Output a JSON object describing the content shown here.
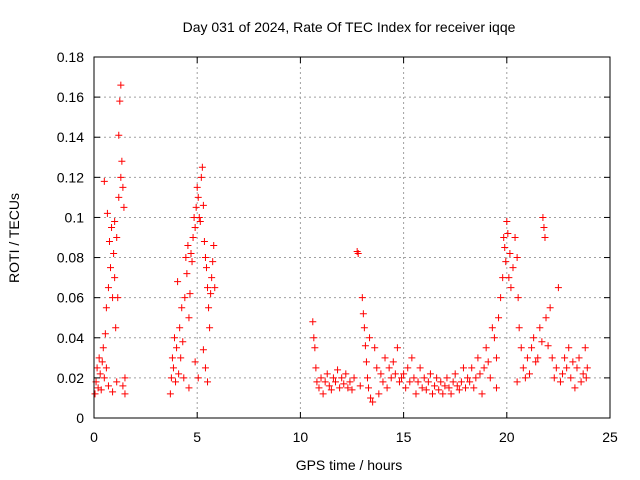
{
  "chart_data": {
    "type": "scatter",
    "title": "Day 031 of 2024, Rate Of TEC Index for receiver iqqe",
    "xlabel": "GPS time / hours",
    "ylabel": "ROTI / TECUs",
    "xlim": [
      0,
      25
    ],
    "ylim": [
      0,
      0.18
    ],
    "xticks": [
      0,
      5,
      10,
      15,
      20,
      25
    ],
    "xtick_labels": [
      "0",
      "5",
      "10",
      "15",
      "20",
      "25"
    ],
    "yticks": [
      0,
      0.02,
      0.04,
      0.06,
      0.08,
      0.1,
      0.12,
      0.14,
      0.16,
      0.18
    ],
    "ytick_labels": [
      "0",
      "0.02",
      "0.04",
      "0.06",
      "0.08",
      "0.1",
      "0.12",
      "0.14",
      "0.16",
      "0.18"
    ],
    "grid": true,
    "marker": "+",
    "marker_color": "#ff0000",
    "series": [
      {
        "name": "ROTI",
        "points": [
          [
            0.05,
            0.012
          ],
          [
            0.1,
            0.018
          ],
          [
            0.15,
            0.025
          ],
          [
            0.2,
            0.015
          ],
          [
            0.25,
            0.03
          ],
          [
            0.3,
            0.022
          ],
          [
            0.35,
            0.014
          ],
          [
            0.4,
            0.028
          ],
          [
            0.45,
            0.035
          ],
          [
            0.5,
            0.02
          ],
          [
            0.5,
            0.118
          ],
          [
            0.55,
            0.042
          ],
          [
            0.6,
            0.055
          ],
          [
            0.65,
            0.102
          ],
          [
            0.7,
            0.065
          ],
          [
            0.75,
            0.088
          ],
          [
            0.8,
            0.075
          ],
          [
            0.85,
            0.095
          ],
          [
            0.9,
            0.06
          ],
          [
            0.95,
            0.082
          ],
          [
            1.0,
            0.07
          ],
          [
            1.0,
            0.098
          ],
          [
            1.05,
            0.045
          ],
          [
            1.1,
            0.09
          ],
          [
            1.15,
            0.06
          ],
          [
            1.2,
            0.11
          ],
          [
            1.2,
            0.141
          ],
          [
            1.25,
            0.158
          ],
          [
            1.3,
            0.166
          ],
          [
            1.3,
            0.12
          ],
          [
            1.35,
            0.128
          ],
          [
            1.4,
            0.115
          ],
          [
            1.45,
            0.105
          ],
          [
            1.5,
            0.012
          ],
          [
            1.5,
            0.02
          ],
          [
            1.1,
            0.018
          ],
          [
            0.9,
            0.013
          ],
          [
            0.7,
            0.016
          ],
          [
            0.6,
            0.025
          ],
          [
            1.4,
            0.016
          ],
          [
            3.7,
            0.012
          ],
          [
            3.75,
            0.02
          ],
          [
            3.8,
            0.03
          ],
          [
            3.85,
            0.025
          ],
          [
            3.9,
            0.04
          ],
          [
            3.95,
            0.018
          ],
          [
            4.0,
            0.035
          ],
          [
            4.05,
            0.068
          ],
          [
            4.1,
            0.022
          ],
          [
            4.15,
            0.045
          ],
          [
            4.2,
            0.03
          ],
          [
            4.25,
            0.055
          ],
          [
            4.3,
            0.038
          ],
          [
            4.35,
            0.02
          ],
          [
            4.4,
            0.06
          ],
          [
            4.45,
            0.08
          ],
          [
            4.5,
            0.072
          ],
          [
            4.55,
            0.086
          ],
          [
            4.6,
            0.05
          ],
          [
            4.65,
            0.062
          ],
          [
            4.7,
            0.082
          ],
          [
            4.75,
            0.078
          ],
          [
            4.8,
            0.09
          ],
          [
            4.85,
            0.1
          ],
          [
            4.9,
            0.095
          ],
          [
            4.95,
            0.105
          ],
          [
            5.0,
            0.115
          ],
          [
            5.05,
            0.11
          ],
          [
            5.1,
            0.1
          ],
          [
            5.15,
            0.098
          ],
          [
            5.2,
            0.12
          ],
          [
            5.25,
            0.125
          ],
          [
            5.3,
            0.106
          ],
          [
            5.35,
            0.088
          ],
          [
            5.4,
            0.08
          ],
          [
            5.45,
            0.075
          ],
          [
            5.5,
            0.065
          ],
          [
            5.55,
            0.055
          ],
          [
            5.6,
            0.045
          ],
          [
            5.65,
            0.062
          ],
          [
            5.7,
            0.07
          ],
          [
            5.75,
            0.078
          ],
          [
            5.8,
            0.086
          ],
          [
            5.85,
            0.065
          ],
          [
            5.4,
            0.025
          ],
          [
            5.5,
            0.018
          ],
          [
            4.9,
            0.028
          ],
          [
            5.05,
            0.02
          ],
          [
            4.6,
            0.015
          ],
          [
            5.3,
            0.034
          ],
          [
            10.6,
            0.048
          ],
          [
            10.65,
            0.04
          ],
          [
            10.7,
            0.035
          ],
          [
            10.75,
            0.025
          ],
          [
            10.8,
            0.018
          ],
          [
            10.9,
            0.015
          ],
          [
            11.0,
            0.02
          ],
          [
            11.1,
            0.012
          ],
          [
            11.2,
            0.018
          ],
          [
            11.3,
            0.022
          ],
          [
            11.4,
            0.016
          ],
          [
            11.5,
            0.014
          ],
          [
            11.6,
            0.02
          ],
          [
            11.7,
            0.018
          ],
          [
            11.8,
            0.024
          ],
          [
            11.9,
            0.015
          ],
          [
            12.0,
            0.02
          ],
          [
            12.1,
            0.017
          ],
          [
            12.2,
            0.022
          ],
          [
            12.3,
            0.015
          ],
          [
            12.4,
            0.018
          ],
          [
            12.5,
            0.014
          ],
          [
            12.6,
            0.02
          ],
          [
            12.75,
            0.083
          ],
          [
            12.8,
            0.082
          ],
          [
            12.9,
            0.016
          ],
          [
            13.0,
            0.06
          ],
          [
            13.05,
            0.052
          ],
          [
            13.1,
            0.045
          ],
          [
            13.15,
            0.036
          ],
          [
            13.2,
            0.028
          ],
          [
            13.25,
            0.02
          ],
          [
            13.3,
            0.015
          ],
          [
            13.35,
            0.04
          ],
          [
            13.4,
            0.01
          ],
          [
            13.5,
            0.008
          ],
          [
            13.6,
            0.035
          ],
          [
            13.7,
            0.025
          ],
          [
            13.8,
            0.012
          ],
          [
            13.9,
            0.022
          ],
          [
            14.0,
            0.018
          ],
          [
            14.1,
            0.03
          ],
          [
            14.2,
            0.015
          ],
          [
            14.3,
            0.025
          ],
          [
            14.4,
            0.02
          ],
          [
            14.5,
            0.028
          ],
          [
            14.6,
            0.022
          ],
          [
            14.7,
            0.035
          ],
          [
            14.8,
            0.018
          ],
          [
            14.9,
            0.02
          ],
          [
            15.0,
            0.022
          ],
          [
            15.1,
            0.015
          ],
          [
            15.2,
            0.025
          ],
          [
            15.3,
            0.018
          ],
          [
            15.4,
            0.03
          ],
          [
            15.5,
            0.02
          ],
          [
            15.6,
            0.012
          ],
          [
            15.7,
            0.018
          ],
          [
            15.8,
            0.025
          ],
          [
            15.9,
            0.015
          ],
          [
            16.0,
            0.02
          ],
          [
            16.1,
            0.014
          ],
          [
            16.2,
            0.018
          ],
          [
            16.3,
            0.022
          ],
          [
            16.4,
            0.012
          ],
          [
            16.5,
            0.016
          ],
          [
            16.6,
            0.02
          ],
          [
            16.7,
            0.014
          ],
          [
            16.8,
            0.018
          ],
          [
            16.9,
            0.012
          ],
          [
            17.0,
            0.016
          ],
          [
            17.1,
            0.02
          ],
          [
            17.2,
            0.015
          ],
          [
            17.3,
            0.012
          ],
          [
            17.4,
            0.018
          ],
          [
            17.5,
            0.022
          ],
          [
            17.6,
            0.016
          ],
          [
            17.7,
            0.014
          ],
          [
            17.8,
            0.018
          ],
          [
            17.9,
            0.025
          ],
          [
            18.0,
            0.015
          ],
          [
            18.1,
            0.02
          ],
          [
            18.2,
            0.018
          ],
          [
            18.3,
            0.025
          ],
          [
            18.4,
            0.015
          ],
          [
            18.5,
            0.02
          ],
          [
            18.6,
            0.03
          ],
          [
            18.7,
            0.022
          ],
          [
            18.8,
            0.012
          ],
          [
            18.9,
            0.025
          ],
          [
            19.0,
            0.035
          ],
          [
            19.1,
            0.028
          ],
          [
            19.2,
            0.02
          ],
          [
            19.3,
            0.045
          ],
          [
            19.4,
            0.04
          ],
          [
            19.5,
            0.03
          ],
          [
            19.6,
            0.05
          ],
          [
            19.7,
            0.06
          ],
          [
            19.8,
            0.07
          ],
          [
            19.85,
            0.09
          ],
          [
            19.9,
            0.085
          ],
          [
            19.95,
            0.078
          ],
          [
            20.0,
            0.098
          ],
          [
            20.05,
            0.092
          ],
          [
            20.1,
            0.07
          ],
          [
            20.15,
            0.082
          ],
          [
            20.2,
            0.065
          ],
          [
            20.3,
            0.075
          ],
          [
            20.4,
            0.09
          ],
          [
            20.5,
            0.08
          ],
          [
            20.55,
            0.06
          ],
          [
            20.6,
            0.045
          ],
          [
            20.7,
            0.035
          ],
          [
            20.8,
            0.025
          ],
          [
            20.9,
            0.02
          ],
          [
            21.0,
            0.03
          ],
          [
            21.1,
            0.022
          ],
          [
            21.2,
            0.035
          ],
          [
            21.3,
            0.04
          ],
          [
            21.4,
            0.028
          ],
          [
            21.5,
            0.03
          ],
          [
            21.6,
            0.045
          ],
          [
            21.7,
            0.038
          ],
          [
            21.75,
            0.1
          ],
          [
            21.8,
            0.095
          ],
          [
            21.85,
            0.09
          ],
          [
            21.9,
            0.05
          ],
          [
            22.0,
            0.036
          ],
          [
            22.1,
            0.055
          ],
          [
            22.2,
            0.03
          ],
          [
            22.3,
            0.02
          ],
          [
            22.4,
            0.025
          ],
          [
            22.5,
            0.065
          ],
          [
            22.6,
            0.018
          ],
          [
            22.7,
            0.022
          ],
          [
            22.8,
            0.03
          ],
          [
            22.9,
            0.025
          ],
          [
            23.0,
            0.035
          ],
          [
            23.1,
            0.02
          ],
          [
            23.2,
            0.028
          ],
          [
            23.3,
            0.015
          ],
          [
            23.4,
            0.025
          ],
          [
            23.5,
            0.03
          ],
          [
            23.6,
            0.018
          ],
          [
            23.7,
            0.022
          ],
          [
            23.8,
            0.035
          ],
          [
            23.85,
            0.02
          ],
          [
            23.9,
            0.025
          ],
          [
            19.5,
            0.015
          ],
          [
            20.5,
            0.018
          ]
        ]
      }
    ]
  }
}
